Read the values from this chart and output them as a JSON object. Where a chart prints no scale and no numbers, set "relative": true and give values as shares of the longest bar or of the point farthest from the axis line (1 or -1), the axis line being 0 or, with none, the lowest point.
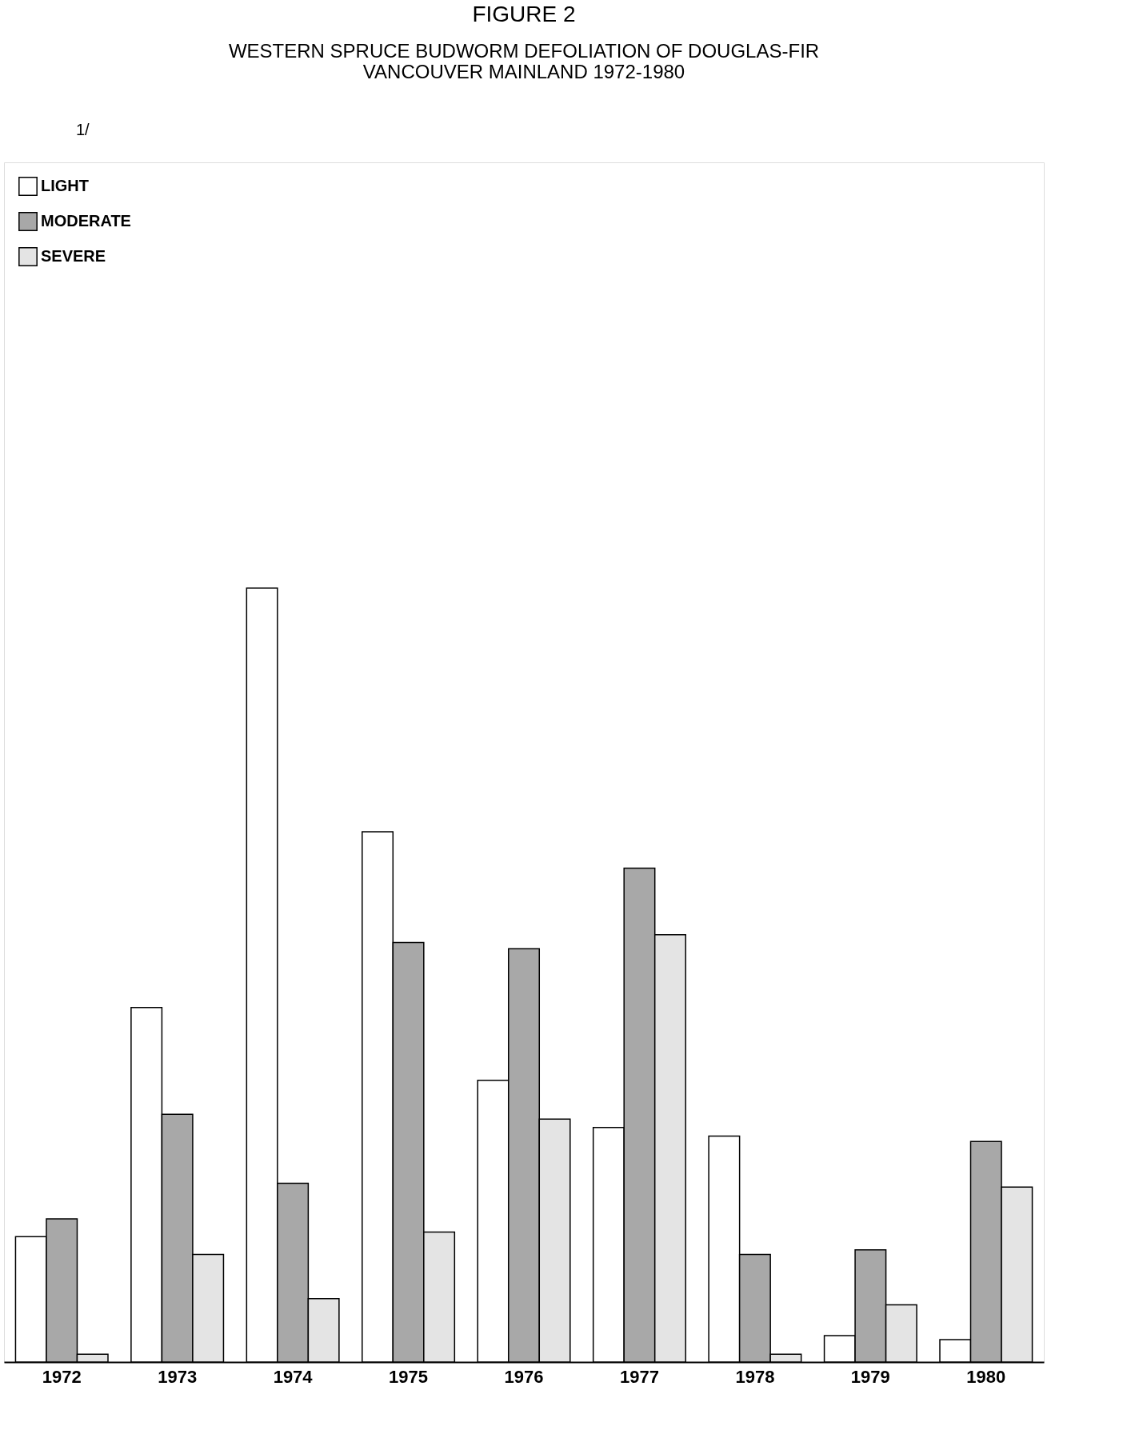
{
  "chart_data": {
    "type": "bar",
    "title": "FIGURE 2",
    "subtitle": [
      "WESTERN SPRUCE BUDWORM DEFOLIATION OF DOUGLAS-FIR",
      "VANCOUVER MAINLAND 1972-1980"
    ],
    "annotations": [
      "1/"
    ],
    "categories": [
      "1972",
      "1973",
      "1974",
      "1975",
      "1976",
      "1977",
      "1978",
      "1979",
      "1980"
    ],
    "relative": true,
    "legend": "top left",
    "grid": false,
    "series": [
      {
        "name": "LIGHT",
        "color": "#ffffff",
        "values": [
          0.162,
          0.458,
          1.0,
          0.685,
          0.364,
          0.303,
          0.292,
          0.034,
          0.029
        ]
      },
      {
        "name": "MODERATE",
        "color": "#a8a8a8",
        "values": [
          0.185,
          0.32,
          0.231,
          0.542,
          0.534,
          0.638,
          0.139,
          0.145,
          0.285
        ]
      },
      {
        "name": "SEVERE",
        "color": "#e4e4e4",
        "values": [
          0.01,
          0.139,
          0.082,
          0.168,
          0.314,
          0.552,
          0.01,
          0.074,
          0.226
        ]
      }
    ]
  }
}
